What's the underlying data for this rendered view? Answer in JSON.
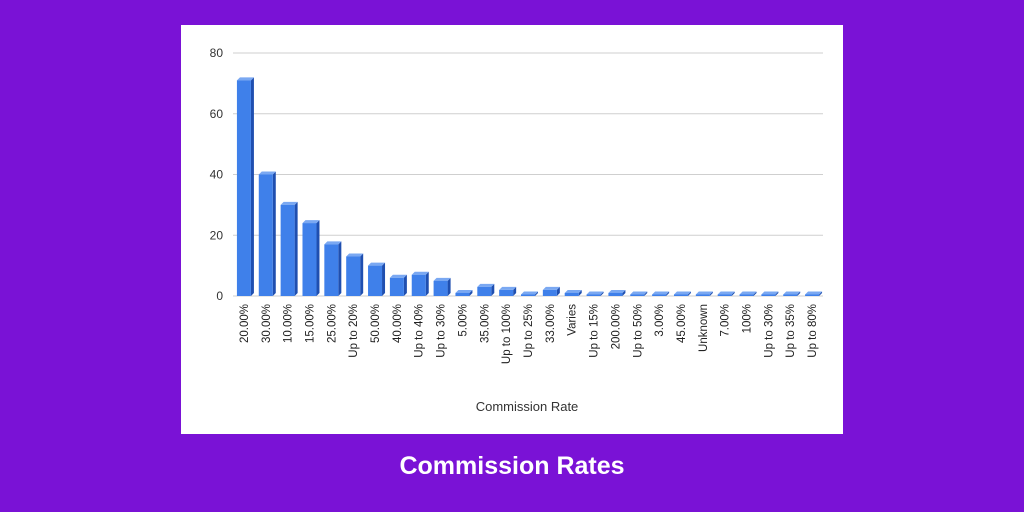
{
  "caption": "Commission Rates",
  "colors": {
    "background": "#7a12d6",
    "card": "#ffffff",
    "bar": "#3f80ea",
    "bar_side": "#1f4fb0",
    "bar_top": "#7aa8f2",
    "grid": "#cfcfcf",
    "caption_text": "#ffffff"
  },
  "chart_data": {
    "type": "bar",
    "title": "",
    "xlabel": "Commission Rate",
    "ylabel": "",
    "ylim": [
      0,
      80
    ],
    "yticks": [
      0,
      20,
      40,
      60,
      80
    ],
    "grid": true,
    "legend": "none",
    "categories": [
      "20.00%",
      "30.00%",
      "10.00%",
      "15.00%",
      "25.00%",
      "Up to 20%",
      "50.00%",
      "40.00%",
      "Up to 40%",
      "Up to 30%",
      "5.00%",
      "35.00%",
      "Up to 100%",
      "Up to 25%",
      "33.00%",
      "Varies",
      "Up to 15%",
      "200.00%",
      "Up to 50%",
      "3.00%",
      "45.00%",
      "Unknown",
      "7.00%",
      "100%",
      "Up to 30%",
      "Up to 35%",
      "Up to 80%"
    ],
    "values": [
      71,
      40,
      30,
      24,
      17,
      13,
      10,
      6,
      7,
      5,
      1,
      3,
      2,
      0,
      2,
      1,
      0,
      1,
      0,
      0,
      0,
      0,
      0,
      0,
      0,
      0,
      0
    ]
  }
}
